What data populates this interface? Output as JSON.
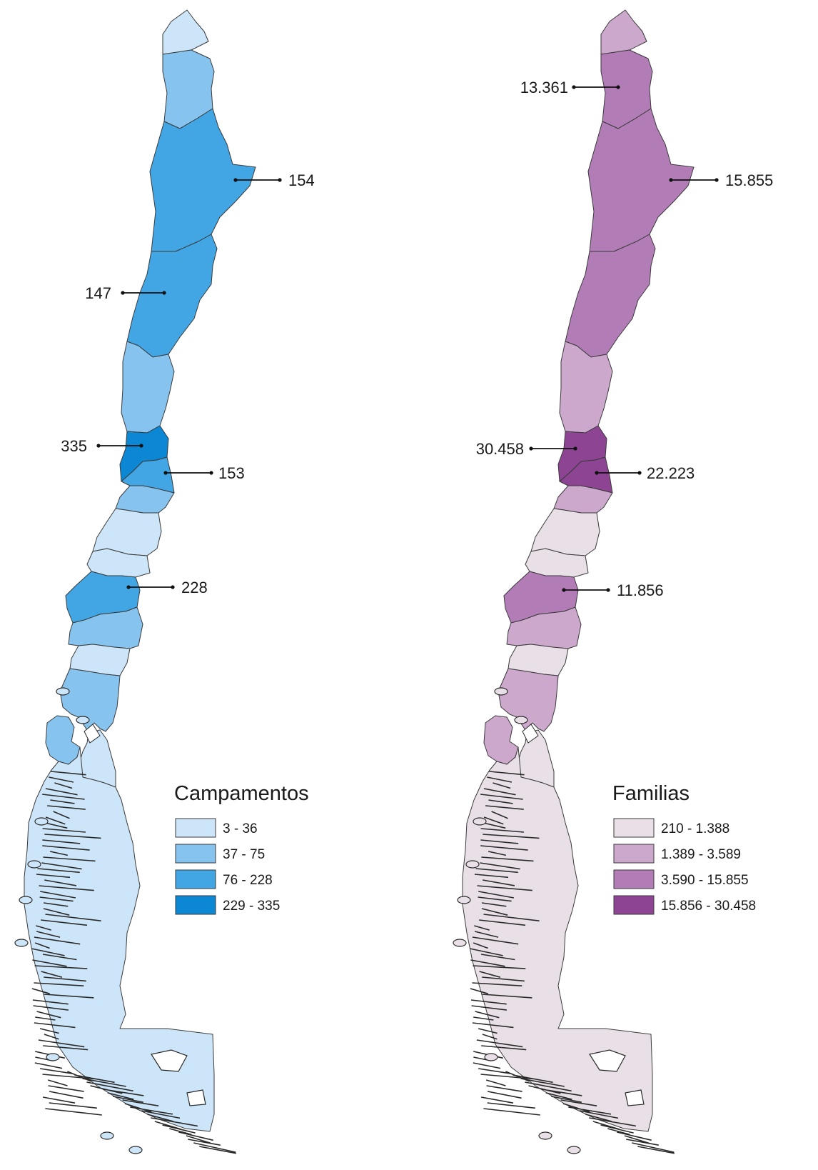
{
  "maps": [
    {
      "id": "campamentos",
      "legend": {
        "title": "Campamentos",
        "items": [
          {
            "label": "3 - 36",
            "color": "#cde5f8"
          },
          {
            "label": "37 - 75",
            "color": "#86c4ef"
          },
          {
            "label": "76 - 228",
            "color": "#42a6e4"
          },
          {
            "label": "229 - 335",
            "color": "#0b87d3"
          }
        ]
      },
      "regions": [
        {
          "class": 0
        },
        {
          "class": 1
        },
        {
          "class": 2
        },
        {
          "class": 2
        },
        {
          "class": 1
        },
        {
          "class": 3
        },
        {
          "class": 2
        },
        {
          "class": 1
        },
        {
          "class": 0
        },
        {
          "class": 0
        },
        {
          "class": 2
        },
        {
          "class": 1
        },
        {
          "class": 0
        },
        {
          "class": 1
        },
        {
          "class": 1
        },
        {
          "class": 0
        }
      ],
      "callouts": [
        {
          "label": "154"
        },
        {
          "label": "147"
        },
        {
          "label": "335"
        },
        {
          "label": "153"
        },
        {
          "label": "228"
        }
      ]
    },
    {
      "id": "familias",
      "legend": {
        "title": "Familias",
        "items": [
          {
            "label": "210 - 1.388",
            "color": "#e8e0e6"
          },
          {
            "label": "1.389 - 3.589",
            "color": "#cda8cd"
          },
          {
            "label": "3.590 - 15.855",
            "color": "#b27cb6"
          },
          {
            "label": "15.856 - 30.458",
            "color": "#8d4593"
          }
        ]
      },
      "regions": [
        {
          "class": 1
        },
        {
          "class": 2
        },
        {
          "class": 2
        },
        {
          "class": 2
        },
        {
          "class": 1
        },
        {
          "class": 3
        },
        {
          "class": 3
        },
        {
          "class": 1
        },
        {
          "class": 0
        },
        {
          "class": 0
        },
        {
          "class": 2
        },
        {
          "class": 1
        },
        {
          "class": 0
        },
        {
          "class": 1
        },
        {
          "class": 1
        },
        {
          "class": 0
        }
      ],
      "callouts": [
        {
          "label": "13.361"
        },
        {
          "label": "15.855"
        },
        {
          "label": "30.458"
        },
        {
          "label": "22.223"
        },
        {
          "label": "11.856"
        }
      ]
    }
  ]
}
